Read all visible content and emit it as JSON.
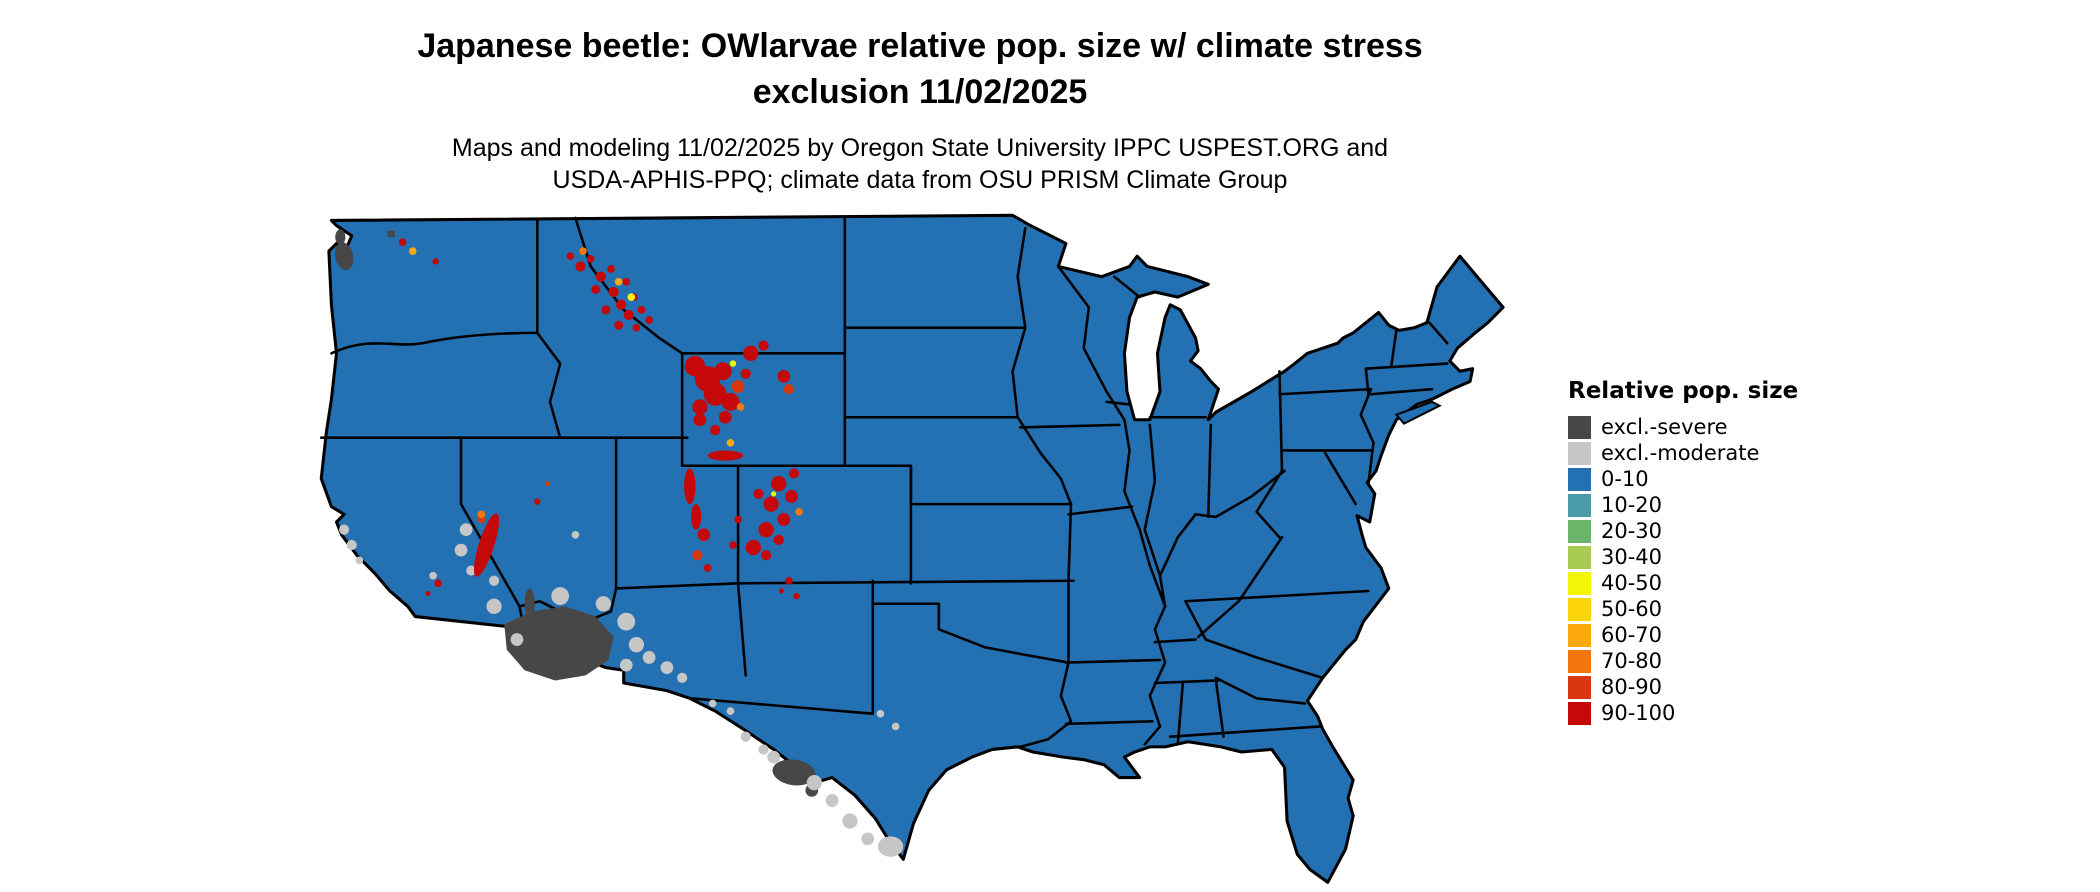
{
  "header": {
    "title_line1": "Japanese beetle: OWlarvae relative pop. size w/ climate stress",
    "title_line2": "exclusion 11/02/2025",
    "subtitle_line1": "Maps and modeling 11/02/2025 by Oregon State University IPPC USPEST.ORG and",
    "subtitle_line2": "USDA-APHIS-PPQ; climate data from OSU PRISM Climate Group"
  },
  "legend": {
    "title": "Relative pop. size",
    "items": [
      {
        "label": "excl.-severe",
        "color": "#474747"
      },
      {
        "label": "excl.-moderate",
        "color": "#c6c6c6"
      },
      {
        "label": "0-10",
        "color": "#2370b2"
      },
      {
        "label": "10-20",
        "color": "#4b9aab"
      },
      {
        "label": "20-30",
        "color": "#6ab56a"
      },
      {
        "label": "30-40",
        "color": "#a8cc51"
      },
      {
        "label": "40-50",
        "color": "#f5f50c"
      },
      {
        "label": "50-60",
        "color": "#fbd40b"
      },
      {
        "label": "60-70",
        "color": "#fba70e"
      },
      {
        "label": "70-80",
        "color": "#f1770e"
      },
      {
        "label": "80-90",
        "color": "#d9370f"
      },
      {
        "label": "90-100",
        "color": "#c50808"
      }
    ]
  },
  "map": {
    "description": "Continental United States choropleth of Japanese beetle overwintering larvae relative population size with climate stress exclusion",
    "colors": {
      "base-blue": "#2370b2",
      "excl-severe": "#474747",
      "excl-moderate": "#c6c6c6",
      "red-90": "#c50808",
      "red-80": "#d9370f",
      "orange-70": "#f1770e",
      "orange-60": "#fba70e",
      "yellow-40": "#f5f50c",
      "border": "#000000"
    }
  }
}
